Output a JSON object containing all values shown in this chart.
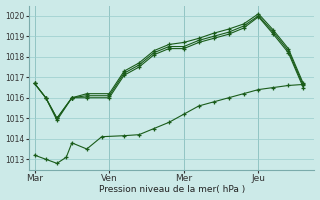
{
  "title": "Pression niveau de la mer( hPa )",
  "background_color": "#cceae8",
  "grid_color": "#99cccc",
  "line_color": "#1a5c1a",
  "ylim": [
    1012.5,
    1020.5
  ],
  "xtick_labels": [
    "Mar",
    "Ven",
    "Mer",
    "Jeu"
  ],
  "xtick_positions": [
    0,
    2,
    4,
    6
  ],
  "upper1_x": [
    0,
    0.3,
    0.6,
    1.0,
    1.0,
    1.4,
    2.0,
    2.4,
    2.8,
    3.2,
    3.6,
    4.0,
    4.4,
    4.8,
    5.2,
    5.6,
    6.0,
    6.4,
    6.8,
    7.2
  ],
  "upper1_y": [
    1016.7,
    1016.0,
    1015.0,
    1016.0,
    1016.0,
    1016.1,
    1016.1,
    1017.2,
    1017.6,
    1018.2,
    1018.5,
    1018.5,
    1018.8,
    1019.0,
    1019.2,
    1019.5,
    1020.0,
    1019.2,
    1018.3,
    1016.6
  ],
  "upper2_x": [
    0,
    0.3,
    0.6,
    1.0,
    1.0,
    1.4,
    2.0,
    2.4,
    2.8,
    3.2,
    3.6,
    4.0,
    4.4,
    4.8,
    5.2,
    5.6,
    6.0,
    6.4,
    6.8,
    7.2
  ],
  "upper2_y": [
    1016.7,
    1016.0,
    1015.0,
    1016.0,
    1016.0,
    1016.2,
    1016.2,
    1017.3,
    1017.7,
    1018.3,
    1018.6,
    1018.7,
    1018.9,
    1019.15,
    1019.35,
    1019.6,
    1020.1,
    1019.3,
    1018.4,
    1016.7
  ],
  "upper3_x": [
    0,
    0.3,
    0.6,
    1.0,
    1.4,
    2.0,
    2.4,
    2.8,
    3.2,
    3.6,
    4.0,
    4.4,
    4.8,
    5.2,
    5.6,
    6.0,
    6.4,
    6.8,
    7.2
  ],
  "upper3_y": [
    1016.7,
    1016.0,
    1014.9,
    1016.0,
    1016.0,
    1016.0,
    1017.1,
    1017.5,
    1018.1,
    1018.4,
    1018.4,
    1018.7,
    1018.9,
    1019.1,
    1019.4,
    1019.95,
    1019.1,
    1018.2,
    1016.5
  ],
  "lower_x": [
    0,
    0.3,
    0.6,
    0.85,
    1.0,
    1.4,
    1.8,
    2.4,
    2.8,
    3.2,
    3.6,
    4.0,
    4.4,
    4.8,
    5.2,
    5.6,
    6.0,
    6.4,
    6.8,
    7.2
  ],
  "lower_y": [
    1013.2,
    1013.0,
    1012.8,
    1013.1,
    1013.8,
    1013.5,
    1014.1,
    1014.15,
    1014.2,
    1014.5,
    1014.8,
    1015.2,
    1015.6,
    1015.8,
    1016.0,
    1016.2,
    1016.4,
    1016.5,
    1016.6,
    1016.65
  ]
}
